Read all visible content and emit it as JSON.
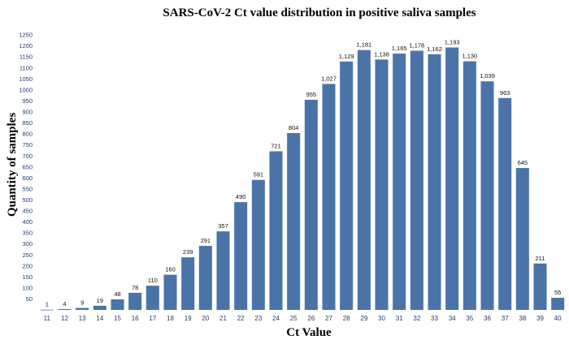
{
  "chart_data": {
    "type": "bar",
    "title": "SARS-CoV-2 Ct value distribution in positive saliva samples",
    "xlabel": "Ct Value",
    "ylabel": "Quantity of samples",
    "bar_color": "#4a74a7",
    "grid": false,
    "ylim": [
      0,
      1250
    ],
    "yticks": [
      50,
      100,
      150,
      200,
      250,
      300,
      350,
      400,
      450,
      500,
      550,
      600,
      650,
      700,
      750,
      800,
      850,
      900,
      950,
      1000,
      1050,
      1100,
      1150,
      1200,
      1250
    ],
    "categories": [
      "11",
      "12",
      "13",
      "14",
      "15",
      "16",
      "17",
      "18",
      "19",
      "20",
      "21",
      "22",
      "23",
      "24",
      "25",
      "26",
      "27",
      "28",
      "29",
      "30",
      "31",
      "32",
      "33",
      "34",
      "35",
      "36",
      "37",
      "38",
      "39",
      "40"
    ],
    "values": [
      1,
      4,
      9,
      19,
      48,
      78,
      110,
      160,
      239,
      291,
      357,
      490,
      591,
      721,
      804,
      955,
      1027,
      1129,
      1181,
      1138,
      1165,
      1178,
      1162,
      1193,
      1130,
      1039,
      963,
      645,
      211,
      55
    ],
    "data_labels": [
      "1",
      "4",
      "9",
      "19",
      "48",
      "78",
      "110",
      "160",
      "239",
      "291",
      "357",
      "490",
      "591",
      "721",
      "804",
      "955",
      "1,027",
      "1,129",
      "1,181",
      "1,138",
      "1,165",
      "1,178",
      "1,162",
      "1,193",
      "1,130",
      "1,039",
      "963",
      "645",
      "211",
      "55"
    ]
  }
}
